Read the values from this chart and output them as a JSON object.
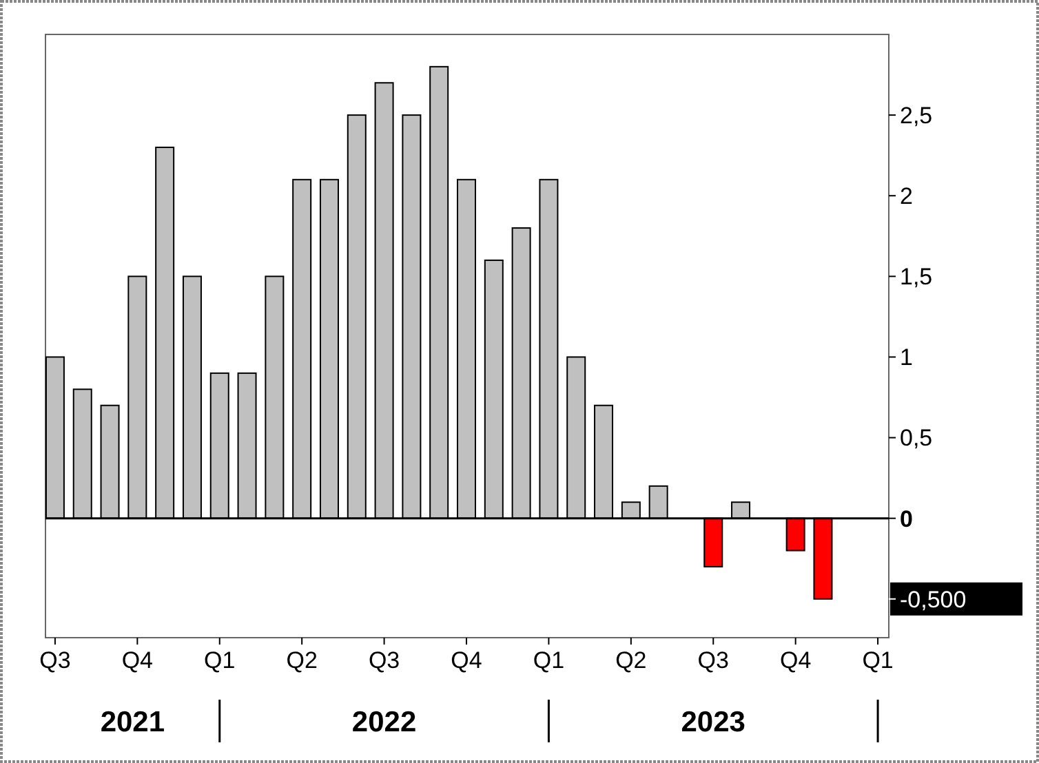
{
  "chart_data": {
    "type": "bar",
    "categories": [
      "Q3",
      null,
      null,
      "Q4",
      null,
      null,
      "Q1",
      null,
      null,
      "Q2",
      null,
      null,
      "Q3",
      null,
      null,
      "Q4",
      null,
      null,
      "Q1",
      null,
      null,
      "Q2",
      null,
      null,
      "Q3",
      null,
      null,
      "Q4",
      null,
      null,
      "Q1"
    ],
    "values": [
      1.0,
      0.8,
      0.7,
      1.5,
      2.3,
      1.5,
      0.9,
      0.9,
      1.5,
      2.1,
      2.1,
      2.5,
      2.7,
      2.5,
      2.8,
      2.1,
      1.6,
      1.8,
      2.1,
      1.0,
      0.7,
      0.1,
      0.2,
      null,
      -0.3,
      0.1,
      null,
      -0.2,
      -0.5,
      null,
      null
    ],
    "colors": [
      "#c0c0c0",
      "#c0c0c0",
      "#c0c0c0",
      "#c0c0c0",
      "#c0c0c0",
      "#c0c0c0",
      "#c0c0c0",
      "#c0c0c0",
      "#c0c0c0",
      "#c0c0c0",
      "#c0c0c0",
      "#c0c0c0",
      "#c0c0c0",
      "#c0c0c0",
      "#c0c0c0",
      "#c0c0c0",
      "#c0c0c0",
      "#c0c0c0",
      "#c0c0c0",
      "#c0c0c0",
      "#c0c0c0",
      "#c0c0c0",
      "#c0c0c0",
      null,
      "#ff0000",
      "#c0c0c0",
      null,
      "#ff0000",
      "#ff0000",
      null,
      null
    ],
    "ylim": [
      -0.74,
      3.0
    ],
    "yticks": [
      0,
      {
        "value": 0.5,
        "label": "0,5"
      },
      1,
      {
        "value": 1.5,
        "label": "1,5"
      },
      2,
      {
        "value": 2.5,
        "label": "2,5"
      }
    ],
    "ref_lines": [
      {
        "axis": "y",
        "value": 0,
        "color": "#000000"
      }
    ],
    "annotations": [
      "2021",
      "2022",
      "2023",
      "-0,500"
    ],
    "grid": false
  }
}
